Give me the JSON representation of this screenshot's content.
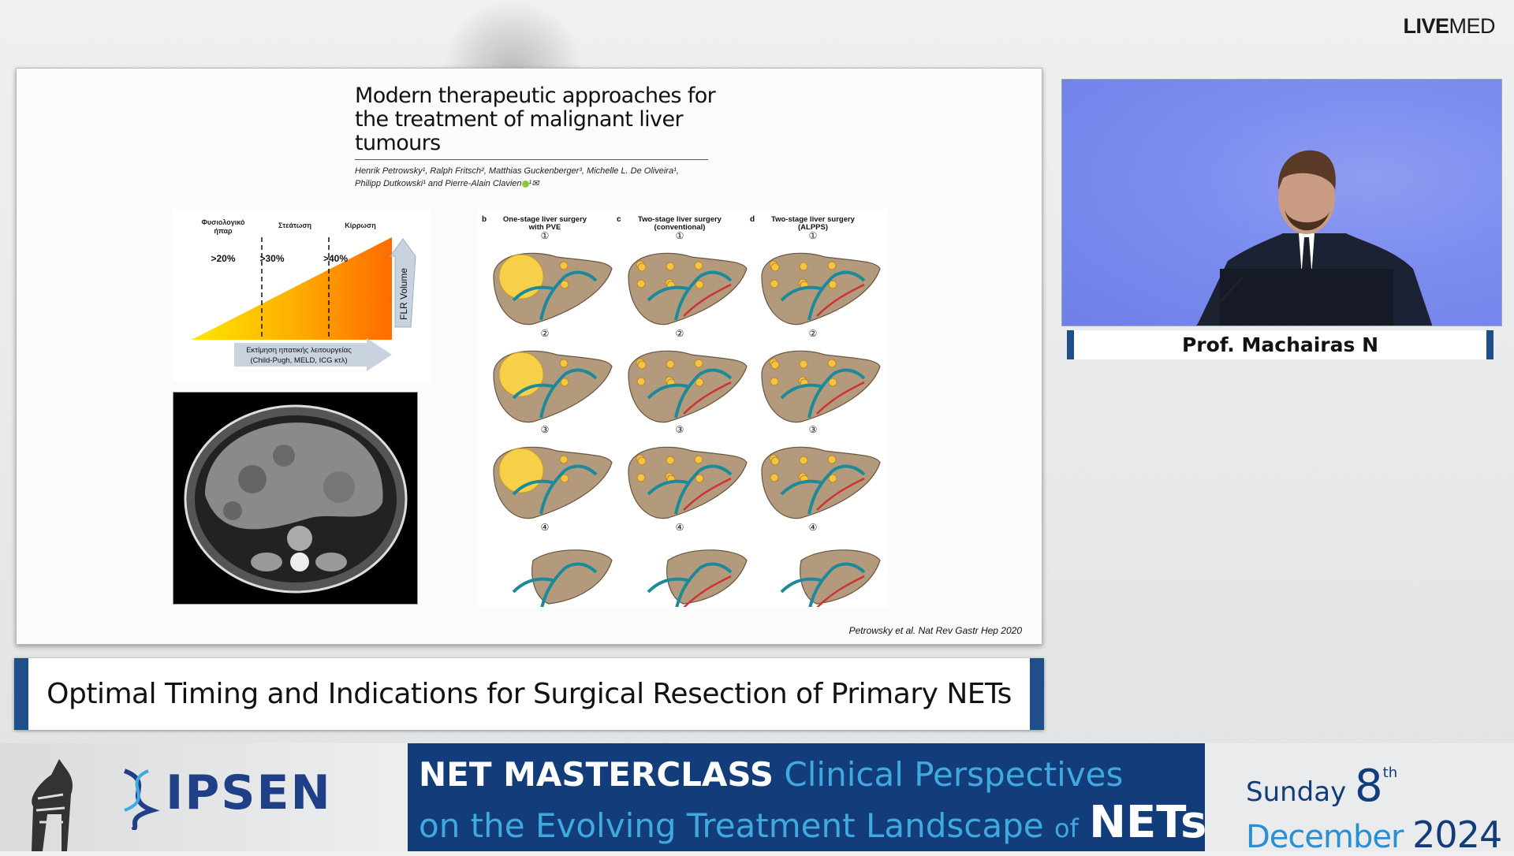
{
  "brand": {
    "live": "LIVE",
    "med": "MED"
  },
  "slide": {
    "article_title": "Modern therapeutic approaches for the treatment of malignant liver tumours",
    "authors_line1": "Henrik Petrowsky¹, Ralph Fritsch², Matthias Guckenberger³, Michelle L. De Oliveira¹,",
    "authors_line2": "Philipp Dutkowski¹ and Pierre-Alain Clavien",
    "authors_suffix": "¹✉",
    "chart": {
      "categories": [
        "Φυσιολογικό ήπαρ",
        "Στεάτωση",
        "Κίρρωση"
      ],
      "thresholds": [
        ">20%",
        ">30%",
        ">40%"
      ],
      "vertical_arrow_label": "FLR Volume",
      "horizontal_arrow_line1": "Εκτίμηση ηπατικής λειτουργείας",
      "horizontal_arrow_line2": "(Child-Pugh, MELD, ICG κτλ)"
    },
    "diagram": {
      "panels": [
        {
          "letter": "b",
          "title1": "One-stage liver surgery",
          "title2": "with PVE"
        },
        {
          "letter": "c",
          "title1": "Two-stage liver surgery",
          "title2": "(conventional)"
        },
        {
          "letter": "d",
          "title1": "Two-stage liver surgery",
          "title2": "(ALPPS)"
        }
      ],
      "steps": [
        "①",
        "②",
        "③",
        "④"
      ]
    },
    "citation": "Petrowsky et al. Nat Rev Gastr Hep 2020"
  },
  "talk_title": "Optimal Timing and Indications for Surgical Resection of Primary NETs",
  "speaker": "Prof. Machairas N",
  "banner": {
    "sponsor": "IPSEN",
    "event_bold": "NET MASTERCLASS",
    "event_part1": "Clinical Perspectives",
    "event_on": "on the",
    "event_evolving": "Evolving",
    "event_treatment": "Treatment Landscape",
    "event_of": "of",
    "event_nets": "NETs",
    "day": "Sunday",
    "date_num": "8",
    "date_suffix": "th",
    "month": "December",
    "year": "2024"
  },
  "colors": {
    "navy": "#133d7a",
    "accent_blue": "#3fa9e0",
    "bar_blue": "#1f4f8a"
  }
}
